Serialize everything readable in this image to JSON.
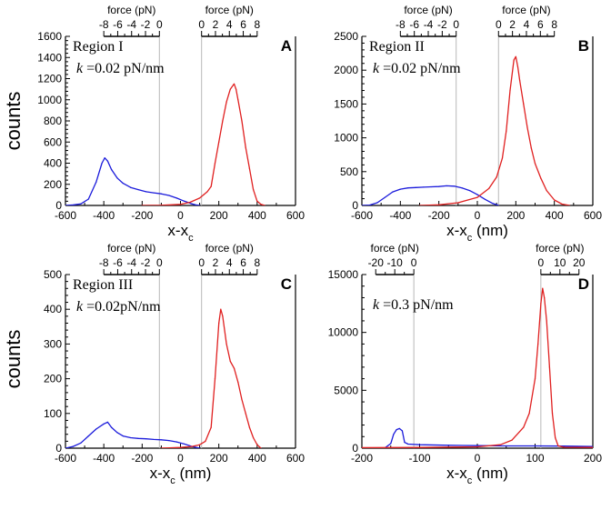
{
  "figure": {
    "y_axis_label": "counts"
  },
  "chart_data": [
    {
      "id": "A",
      "type": "line",
      "panel_label": "A",
      "annotations": [
        "Region I",
        "k =0.02 pN/nm"
      ],
      "xlabel": "x-x_c",
      "ylabel": "counts",
      "xlim": [
        -600,
        600
      ],
      "ylim": [
        0,
        1600
      ],
      "x_ticks": [
        -600,
        -400,
        -200,
        0,
        200,
        400,
        600
      ],
      "y_ticks": [
        0,
        200,
        400,
        600,
        800,
        1000,
        1200,
        1400,
        1600
      ],
      "vlines": [
        -110,
        110
      ],
      "top_axes": [
        {
          "label": "force (pN)",
          "ticks": [
            -8,
            -6,
            -4,
            -2,
            0
          ],
          "x_range": [
            -400,
            -110
          ]
        },
        {
          "label": "force (pN)",
          "ticks": [
            0,
            2,
            4,
            6,
            8
          ],
          "x_range": [
            110,
            400
          ]
        }
      ],
      "series": [
        {
          "color": "#1a1adb",
          "x": [
            -600,
            -560,
            -520,
            -480,
            -440,
            -410,
            -395,
            -380,
            -360,
            -330,
            -300,
            -260,
            -220,
            -180,
            -140,
            -100,
            -60,
            -20,
            20,
            60,
            80,
            100
          ],
          "y": [
            0,
            5,
            15,
            60,
            220,
            400,
            450,
            420,
            340,
            260,
            210,
            170,
            150,
            130,
            120,
            110,
            95,
            70,
            40,
            15,
            5,
            0
          ]
        },
        {
          "color": "#e02020",
          "x": [
            -200,
            -100,
            0,
            50,
            100,
            120,
            140,
            160,
            180,
            200,
            220,
            240,
            260,
            280,
            290,
            300,
            320,
            340,
            360,
            380,
            400,
            420,
            440
          ],
          "y": [
            0,
            2,
            10,
            30,
            70,
            100,
            130,
            180,
            400,
            600,
            800,
            980,
            1100,
            1150,
            1100,
            1000,
            800,
            550,
            350,
            150,
            40,
            10,
            0
          ]
        }
      ]
    },
    {
      "id": "B",
      "type": "line",
      "panel_label": "B",
      "annotations": [
        "Region II",
        "k =0.02 pN/nm"
      ],
      "xlabel": "x-x_c (nm)",
      "ylabel": "",
      "xlim": [
        -600,
        600
      ],
      "ylim": [
        0,
        2500
      ],
      "x_ticks": [
        -600,
        -400,
        -200,
        0,
        200,
        400,
        600
      ],
      "y_ticks": [
        0,
        500,
        1000,
        1500,
        2000,
        2500
      ],
      "vlines": [
        -110,
        110
      ],
      "top_axes": [
        {
          "label": "force (pN)",
          "ticks": [
            -8,
            -6,
            -4,
            -2,
            0
          ],
          "x_range": [
            -400,
            -110
          ]
        },
        {
          "label": "force (pN)",
          "ticks": [
            0,
            2,
            4,
            6,
            8
          ],
          "x_range": [
            110,
            400
          ]
        }
      ],
      "series": [
        {
          "color": "#1a1adb",
          "x": [
            -600,
            -560,
            -520,
            -480,
            -440,
            -400,
            -360,
            -320,
            -280,
            -240,
            -200,
            -160,
            -120,
            -80,
            -40,
            0,
            40,
            80,
            110
          ],
          "y": [
            0,
            5,
            40,
            120,
            200,
            240,
            260,
            265,
            270,
            275,
            280,
            290,
            285,
            260,
            220,
            160,
            90,
            30,
            0
          ]
        },
        {
          "color": "#e02020",
          "x": [
            -300,
            -200,
            -100,
            0,
            60,
            100,
            130,
            150,
            170,
            190,
            200,
            210,
            220,
            240,
            260,
            280,
            300,
            330,
            360,
            400,
            440,
            480
          ],
          "y": [
            0,
            10,
            40,
            120,
            250,
            420,
            700,
            1100,
            1700,
            2150,
            2200,
            2050,
            1850,
            1500,
            1150,
            850,
            620,
            400,
            220,
            80,
            20,
            0
          ]
        }
      ]
    },
    {
      "id": "C",
      "type": "line",
      "panel_label": "C",
      "annotations": [
        "Region III",
        "k =0.02pN/nm"
      ],
      "xlabel": "x-x_c (nm)",
      "ylabel": "counts",
      "xlim": [
        -600,
        600
      ],
      "ylim": [
        0,
        500
      ],
      "x_ticks": [
        -600,
        -400,
        -200,
        0,
        200,
        400,
        600
      ],
      "y_ticks": [
        0,
        100,
        200,
        300,
        400,
        500
      ],
      "vlines": [
        -110,
        110
      ],
      "top_axes": [
        {
          "label": "force (pN)",
          "ticks": [
            -8,
            -6,
            -4,
            -2,
            0
          ],
          "x_range": [
            -400,
            -110
          ]
        },
        {
          "label": "force (pN)",
          "ticks": [
            0,
            2,
            4,
            6,
            8
          ],
          "x_range": [
            110,
            400
          ]
        }
      ],
      "series": [
        {
          "color": "#1a1adb",
          "x": [
            -600,
            -560,
            -520,
            -480,
            -440,
            -400,
            -380,
            -360,
            -330,
            -300,
            -260,
            -220,
            -180,
            -140,
            -100,
            -60,
            -20,
            20,
            60,
            100
          ],
          "y": [
            0,
            5,
            15,
            35,
            55,
            70,
            75,
            60,
            45,
            35,
            30,
            28,
            27,
            25,
            24,
            22,
            18,
            12,
            5,
            0
          ]
        },
        {
          "color": "#e02020",
          "x": [
            -100,
            0,
            60,
            100,
            130,
            160,
            180,
            200,
            210,
            220,
            240,
            260,
            280,
            300,
            320,
            340,
            360,
            380,
            400,
            420
          ],
          "y": [
            0,
            2,
            5,
            10,
            20,
            60,
            200,
            360,
            400,
            380,
            300,
            250,
            230,
            190,
            140,
            100,
            60,
            30,
            10,
            0
          ]
        }
      ]
    },
    {
      "id": "D",
      "type": "line",
      "panel_label": "D",
      "annotations": [
        "k =0.3 pN/nm"
      ],
      "xlabel": "x-x_c (nm)",
      "ylabel": "",
      "xlim": [
        -200,
        200
      ],
      "ylim": [
        0,
        15000
      ],
      "x_ticks": [
        -200,
        -100,
        0,
        100,
        200
      ],
      "y_ticks": [
        0,
        5000,
        10000,
        15000
      ],
      "vlines": [
        -110,
        110
      ],
      "top_axes": [
        {
          "label": "force (pN)",
          "ticks": [
            -20,
            -10,
            0
          ],
          "tick_labels": [
            "-20",
            "-10",
            "0"
          ],
          "x_range": [
            -176,
            -110
          ]
        },
        {
          "label": "force (pN)",
          "ticks": [
            0,
            10,
            20
          ],
          "tick_labels": [
            "0",
            "10",
            "20"
          ],
          "x_range": [
            110,
            176
          ]
        }
      ],
      "series": [
        {
          "color": "#1a1adb",
          "x": [
            -200,
            -160,
            -150,
            -145,
            -140,
            -135,
            -130,
            -126,
            -120,
            -100,
            -50,
            0,
            50,
            100,
            150,
            200
          ],
          "y": [
            0,
            20,
            400,
            1200,
            1600,
            1700,
            1500,
            500,
            350,
            300,
            250,
            220,
            200,
            200,
            180,
            150
          ]
        },
        {
          "color": "#e02020",
          "x": [
            -200,
            -100,
            0,
            40,
            60,
            80,
            90,
            100,
            105,
            110,
            113,
            116,
            120,
            125,
            130,
            135,
            140,
            150,
            200
          ],
          "y": [
            50,
            60,
            120,
            300,
            700,
            1800,
            3000,
            6000,
            9000,
            12500,
            13800,
            13000,
            11000,
            7000,
            3000,
            900,
            200,
            80,
            60
          ]
        }
      ]
    }
  ]
}
